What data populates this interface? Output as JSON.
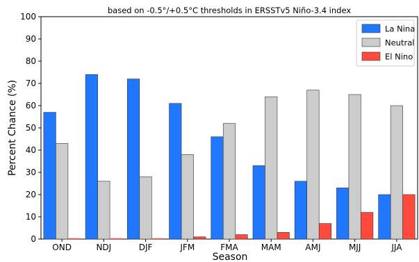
{
  "chart_data": {
    "type": "bar",
    "subtitle": "based on -0.5°/+0.5°C thresholds in ERSSTv5 Niño-3.4 index",
    "xlabel": "Season",
    "ylabel": "Percent Chance (%)",
    "ylim": [
      0,
      100
    ],
    "yticks": [
      0,
      10,
      20,
      30,
      40,
      50,
      60,
      70,
      80,
      90,
      100
    ],
    "grid": false,
    "legend_position": "top-right",
    "categories": [
      "OND",
      "NDJ",
      "DJF",
      "JFM",
      "FMA",
      "MAM",
      "AMJ",
      "MJJ",
      "JJA"
    ],
    "series": [
      {
        "name": "La Nina",
        "color": "#1f78ff",
        "values": [
          57,
          74,
          72,
          61,
          46,
          33,
          26,
          23,
          20
        ]
      },
      {
        "name": "Neutral",
        "color": "#cccccc",
        "values": [
          43,
          26,
          28,
          38,
          52,
          64,
          67,
          65,
          60
        ]
      },
      {
        "name": "El Nino",
        "color": "#ff4b3e",
        "values": [
          0,
          0,
          0,
          1,
          2,
          3,
          7,
          12,
          20
        ]
      }
    ]
  }
}
